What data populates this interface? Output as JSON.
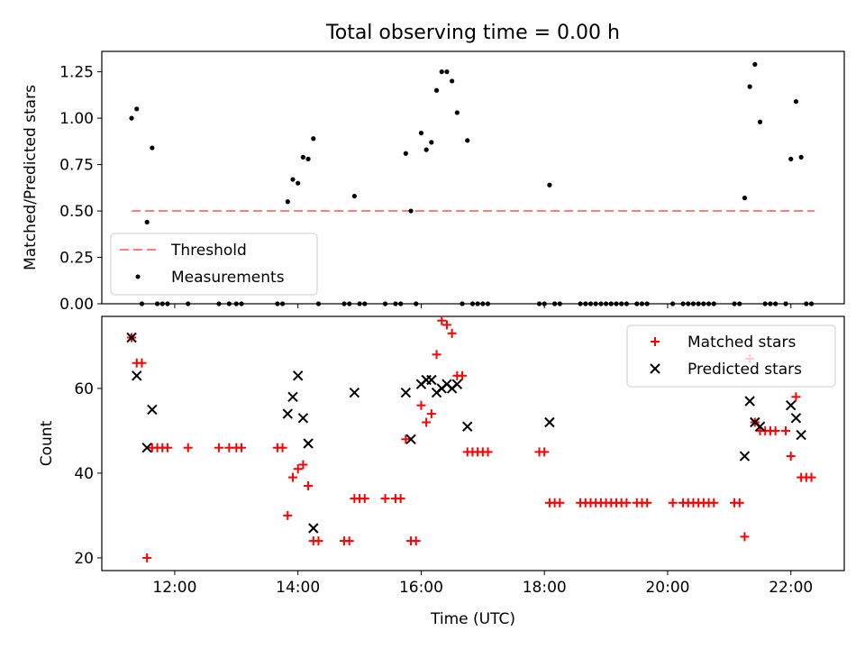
{
  "title": "Total observing time = 0.00 h",
  "chart_data": [
    {
      "type": "scatter",
      "ylabel": "Matched/Predicted stars",
      "xlim": [
        "10:49",
        "22:52"
      ],
      "ylim": [
        0,
        1.36
      ],
      "yticks": [
        "0.00",
        "0.25",
        "0.50",
        "0.75",
        "1.00",
        "1.25"
      ],
      "ytick_values": [
        0,
        0.25,
        0.5,
        0.75,
        1.0,
        1.25
      ],
      "legend_position": "lower-left",
      "threshold": {
        "name": "Threshold",
        "y": 0.5,
        "x_range": [
          "11:18",
          "22:23"
        ],
        "color": "#ff7f7f",
        "style": "dashed"
      },
      "series": [
        {
          "name": "Measurements",
          "color": "#000000",
          "marker": "dot",
          "points": [
            [
              "11:18",
              1.0
            ],
            [
              "11:23",
              1.05
            ],
            [
              "11:28",
              0.0
            ],
            [
              "11:33",
              0.44
            ],
            [
              "11:38",
              0.84
            ],
            [
              "11:43",
              0.0
            ],
            [
              "11:48",
              0.0
            ],
            [
              "11:53",
              0.0
            ],
            [
              "12:13",
              0.0
            ],
            [
              "12:43",
              0.0
            ],
            [
              "12:53",
              0.0
            ],
            [
              "13:00",
              0.0
            ],
            [
              "13:05",
              0.0
            ],
            [
              "13:40",
              0.0
            ],
            [
              "13:45",
              0.0
            ],
            [
              "13:50",
              0.55
            ],
            [
              "13:55",
              0.67
            ],
            [
              "14:00",
              0.65
            ],
            [
              "14:05",
              0.79
            ],
            [
              "14:10",
              0.78
            ],
            [
              "14:15",
              0.89
            ],
            [
              "14:20",
              0.0
            ],
            [
              "14:45",
              0.0
            ],
            [
              "14:50",
              0.0
            ],
            [
              "14:55",
              0.58
            ],
            [
              "15:00",
              0.0
            ],
            [
              "15:05",
              0.0
            ],
            [
              "15:25",
              0.0
            ],
            [
              "15:35",
              0.0
            ],
            [
              "15:40",
              0.0
            ],
            [
              "15:45",
              0.81
            ],
            [
              "15:50",
              0.5
            ],
            [
              "15:55",
              0.0
            ],
            [
              "16:00",
              0.92
            ],
            [
              "16:05",
              0.83
            ],
            [
              "16:10",
              0.87
            ],
            [
              "16:15",
              1.15
            ],
            [
              "16:20",
              1.25
            ],
            [
              "16:25",
              1.25
            ],
            [
              "16:30",
              1.2
            ],
            [
              "16:35",
              1.03
            ],
            [
              "16:40",
              0.0
            ],
            [
              "16:45",
              0.88
            ],
            [
              "16:50",
              0.0
            ],
            [
              "16:55",
              0.0
            ],
            [
              "17:00",
              0.0
            ],
            [
              "17:05",
              0.0
            ],
            [
              "17:55",
              0.0
            ],
            [
              "18:00",
              0.0
            ],
            [
              "18:05",
              0.64
            ],
            [
              "18:10",
              0.0
            ],
            [
              "18:15",
              0.0
            ],
            [
              "18:35",
              0.0
            ],
            [
              "18:40",
              0.0
            ],
            [
              "18:45",
              0.0
            ],
            [
              "18:50",
              0.0
            ],
            [
              "18:55",
              0.0
            ],
            [
              "19:00",
              0.0
            ],
            [
              "19:05",
              0.0
            ],
            [
              "19:10",
              0.0
            ],
            [
              "19:15",
              0.0
            ],
            [
              "19:20",
              0.0
            ],
            [
              "19:30",
              0.0
            ],
            [
              "19:35",
              0.0
            ],
            [
              "19:40",
              0.0
            ],
            [
              "20:05",
              0.0
            ],
            [
              "20:15",
              0.0
            ],
            [
              "20:20",
              0.0
            ],
            [
              "20:25",
              0.0
            ],
            [
              "20:30",
              0.0
            ],
            [
              "20:35",
              0.0
            ],
            [
              "20:40",
              0.0
            ],
            [
              "20:45",
              0.0
            ],
            [
              "21:05",
              0.0
            ],
            [
              "21:10",
              0.0
            ],
            [
              "21:15",
              0.57
            ],
            [
              "21:20",
              1.17
            ],
            [
              "21:25",
              1.29
            ],
            [
              "21:30",
              0.98
            ],
            [
              "21:35",
              0.0
            ],
            [
              "21:40",
              0.0
            ],
            [
              "21:45",
              0.0
            ],
            [
              "21:55",
              0.0
            ],
            [
              "22:00",
              0.78
            ],
            [
              "22:05",
              1.09
            ],
            [
              "22:10",
              0.79
            ],
            [
              "22:15",
              0.0
            ],
            [
              "22:20",
              0.0
            ]
          ]
        }
      ]
    },
    {
      "type": "scatter",
      "xlabel": "Time (UTC)",
      "ylabel": "Count",
      "xlim": [
        "10:49",
        "22:52"
      ],
      "ylim": [
        17,
        77
      ],
      "xticks": [
        "12:00",
        "14:00",
        "16:00",
        "18:00",
        "20:00",
        "22:00"
      ],
      "yticks": [
        "20",
        "40",
        "60"
      ],
      "ytick_values": [
        20,
        40,
        60
      ],
      "legend_position": "top-right",
      "series": [
        {
          "name": "Matched stars",
          "color": "#ff0000",
          "marker": "plus",
          "points": [
            [
              "11:18",
              72
            ],
            [
              "11:23",
              66
            ],
            [
              "11:28",
              66
            ],
            [
              "11:33",
              20
            ],
            [
              "11:38",
              46
            ],
            [
              "11:43",
              46
            ],
            [
              "11:48",
              46
            ],
            [
              "11:53",
              46
            ],
            [
              "12:13",
              46
            ],
            [
              "12:43",
              46
            ],
            [
              "12:53",
              46
            ],
            [
              "13:00",
              46
            ],
            [
              "13:05",
              46
            ],
            [
              "13:40",
              46
            ],
            [
              "13:45",
              46
            ],
            [
              "13:50",
              30
            ],
            [
              "13:55",
              39
            ],
            [
              "14:00",
              41
            ],
            [
              "14:05",
              42
            ],
            [
              "14:10",
              37
            ],
            [
              "14:15",
              24
            ],
            [
              "14:20",
              24
            ],
            [
              "14:45",
              24
            ],
            [
              "14:50",
              24
            ],
            [
              "14:55",
              34
            ],
            [
              "15:00",
              34
            ],
            [
              "15:05",
              34
            ],
            [
              "15:25",
              34
            ],
            [
              "15:35",
              34
            ],
            [
              "15:40",
              34
            ],
            [
              "15:45",
              48
            ],
            [
              "15:50",
              24
            ],
            [
              "15:55",
              24
            ],
            [
              "16:00",
              56
            ],
            [
              "16:05",
              52
            ],
            [
              "16:10",
              54
            ],
            [
              "16:15",
              68
            ],
            [
              "16:20",
              76
            ],
            [
              "16:25",
              75
            ],
            [
              "16:30",
              73
            ],
            [
              "16:35",
              63
            ],
            [
              "16:40",
              63
            ],
            [
              "16:45",
              45
            ],
            [
              "16:50",
              45
            ],
            [
              "16:55",
              45
            ],
            [
              "17:00",
              45
            ],
            [
              "17:05",
              45
            ],
            [
              "17:55",
              45
            ],
            [
              "18:00",
              45
            ],
            [
              "18:05",
              33
            ],
            [
              "18:10",
              33
            ],
            [
              "18:15",
              33
            ],
            [
              "18:35",
              33
            ],
            [
              "18:40",
              33
            ],
            [
              "18:45",
              33
            ],
            [
              "18:50",
              33
            ],
            [
              "18:55",
              33
            ],
            [
              "19:00",
              33
            ],
            [
              "19:05",
              33
            ],
            [
              "19:10",
              33
            ],
            [
              "19:15",
              33
            ],
            [
              "19:20",
              33
            ],
            [
              "19:30",
              33
            ],
            [
              "19:35",
              33
            ],
            [
              "19:40",
              33
            ],
            [
              "20:05",
              33
            ],
            [
              "20:15",
              33
            ],
            [
              "20:20",
              33
            ],
            [
              "20:25",
              33
            ],
            [
              "20:30",
              33
            ],
            [
              "20:35",
              33
            ],
            [
              "20:40",
              33
            ],
            [
              "20:45",
              33
            ],
            [
              "21:05",
              33
            ],
            [
              "21:10",
              33
            ],
            [
              "21:15",
              25
            ],
            [
              "21:20",
              67
            ],
            [
              "21:25",
              52
            ],
            [
              "21:30",
              50
            ],
            [
              "21:35",
              50
            ],
            [
              "21:40",
              50
            ],
            [
              "21:45",
              50
            ],
            [
              "21:55",
              50
            ],
            [
              "22:00",
              44
            ],
            [
              "22:05",
              58
            ],
            [
              "22:10",
              39
            ],
            [
              "22:15",
              39
            ],
            [
              "22:20",
              39
            ]
          ]
        },
        {
          "name": "Predicted stars",
          "color": "#000000",
          "marker": "x",
          "points": [
            [
              "11:18",
              72
            ],
            [
              "11:23",
              63
            ],
            [
              "11:38",
              55
            ],
            [
              "11:33",
              46
            ],
            [
              "13:50",
              54
            ],
            [
              "13:55",
              58
            ],
            [
              "14:00",
              63
            ],
            [
              "14:05",
              53
            ],
            [
              "14:10",
              47
            ],
            [
              "14:15",
              27
            ],
            [
              "14:55",
              59
            ],
            [
              "15:45",
              59
            ],
            [
              "15:50",
              48
            ],
            [
              "16:00",
              61
            ],
            [
              "16:05",
              62
            ],
            [
              "16:10",
              62
            ],
            [
              "16:15",
              59
            ],
            [
              "16:20",
              60
            ],
            [
              "16:25",
              61
            ],
            [
              "16:30",
              60
            ],
            [
              "16:35",
              61
            ],
            [
              "16:45",
              51
            ],
            [
              "18:05",
              52
            ],
            [
              "21:15",
              44
            ],
            [
              "21:20",
              57
            ],
            [
              "21:25",
              52
            ],
            [
              "21:30",
              51
            ],
            [
              "22:00",
              56
            ],
            [
              "22:05",
              53
            ],
            [
              "22:10",
              49
            ]
          ]
        }
      ]
    }
  ]
}
